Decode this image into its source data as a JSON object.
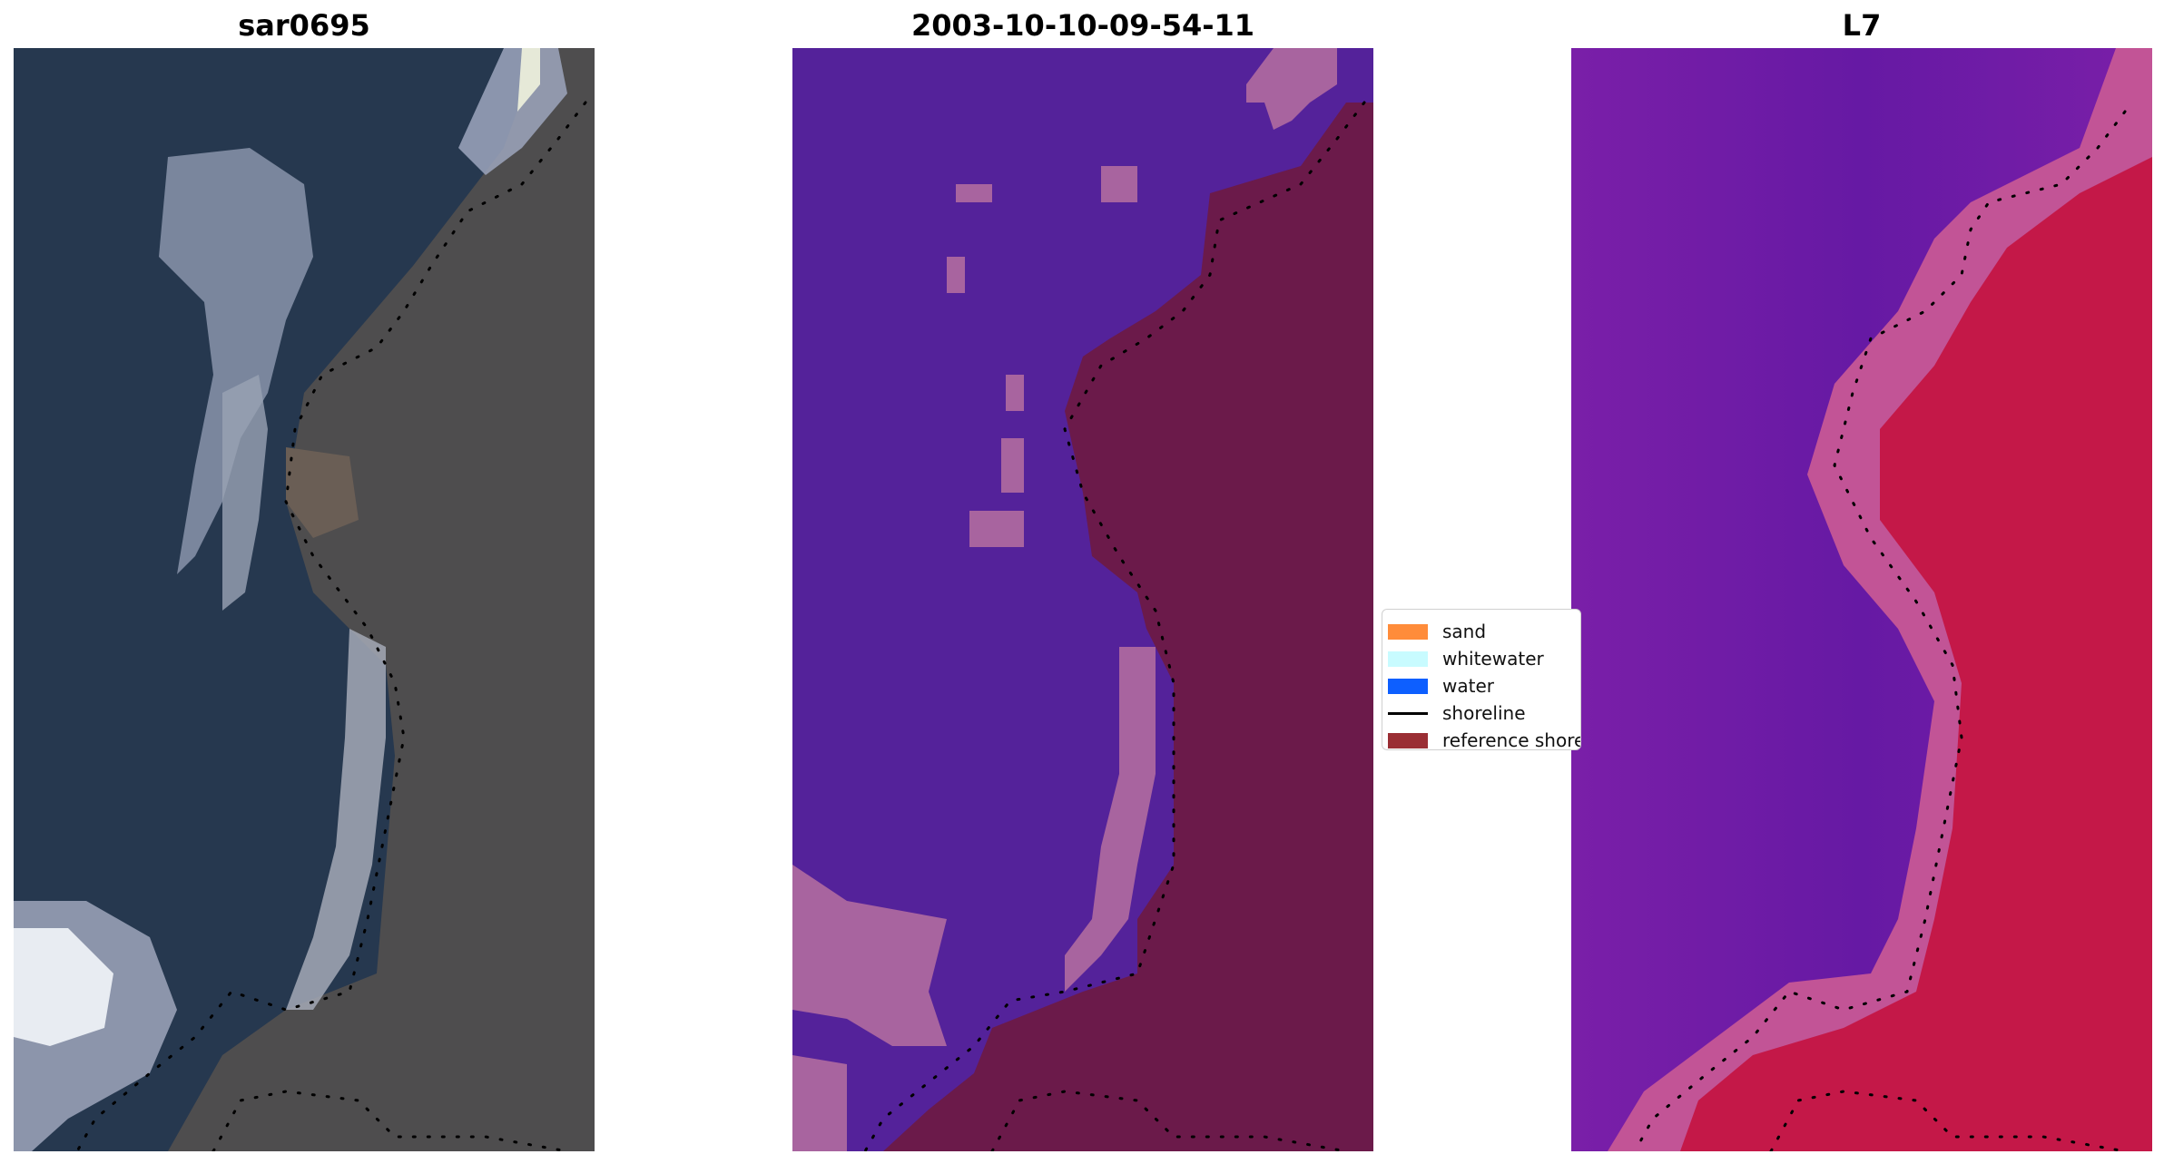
{
  "panels": [
    {
      "title": "sar0695"
    },
    {
      "title": "2003-10-10-09-54-11"
    },
    {
      "title": "L7"
    }
  ],
  "legend": {
    "items": [
      {
        "label": "sand",
        "color": "#ff8c3a",
        "kind": "patch"
      },
      {
        "label": "whitewater",
        "color": "#c8fbff",
        "kind": "patch"
      },
      {
        "label": "water",
        "color": "#0d5fff",
        "kind": "patch"
      },
      {
        "label": "shoreline",
        "color": "#000000",
        "kind": "line"
      },
      {
        "label": "reference shoreline",
        "color": "#9a2e34",
        "kind": "patch"
      }
    ]
  },
  "colors": {
    "rgb_water": "#26384f",
    "rgb_land": "#4e4d4e",
    "rgb_bright": "#9ea6bd",
    "class_water": "#54229a",
    "class_land": "#6b1a4a",
    "class_wet": "#a8649f",
    "ndwi_water": "#6a1ba6",
    "ndwi_land": "#c41848",
    "ndwi_transition": "#c25496"
  }
}
